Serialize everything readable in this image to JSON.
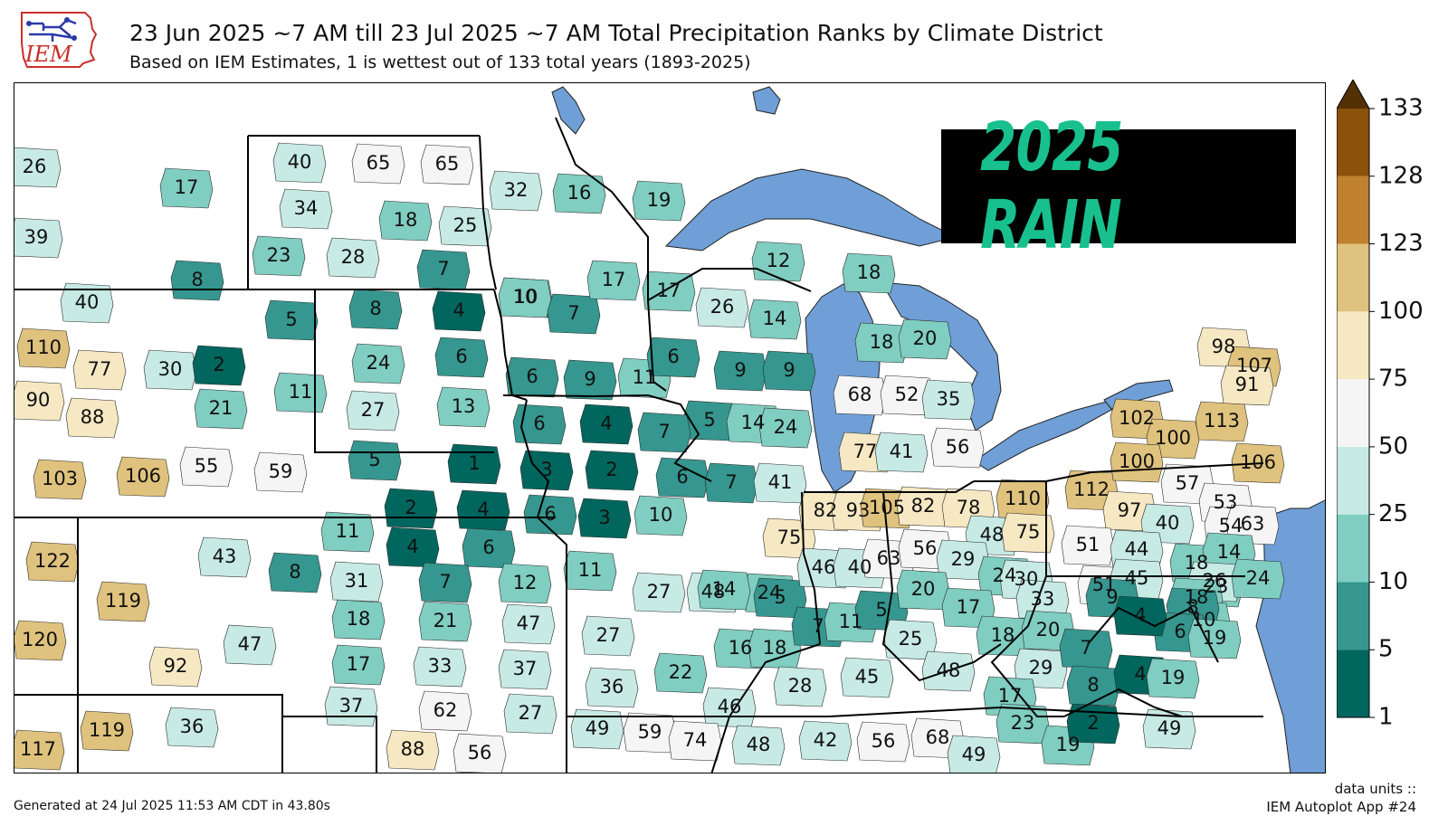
{
  "header": {
    "title": "23 Jun 2025 ~7 AM till 23 Jul 2025 ~7 AM Total Precipitation Ranks by Climate District",
    "subtitle": "Based on IEM Estimates, 1 is wettest out of 133 total years (1893-2025)"
  },
  "logo": {
    "text": "IEM",
    "color": "#c8302c"
  },
  "banner": {
    "text": "2025 RAIN",
    "text_color": "#18c08e",
    "bg_color": "#000000"
  },
  "colorbar": {
    "ticks": [
      "1",
      "5",
      "10",
      "25",
      "50",
      "75",
      "100",
      "123",
      "128",
      "133"
    ],
    "bins": [
      {
        "from": 1,
        "to": 5,
        "color": "#01665e"
      },
      {
        "from": 5,
        "to": 10,
        "color": "#35978f"
      },
      {
        "from": 10,
        "to": 25,
        "color": "#80cdc1"
      },
      {
        "from": 25,
        "to": 50,
        "color": "#c7eae5"
      },
      {
        "from": 50,
        "to": 75,
        "color": "#f5f5f5"
      },
      {
        "from": 75,
        "to": 100,
        "color": "#f6e8c3"
      },
      {
        "from": 100,
        "to": 123,
        "color": "#dfc27d"
      },
      {
        "from": 123,
        "to": 128,
        "color": "#bf812d"
      },
      {
        "from": 128,
        "to": 133,
        "color": "#8c510a"
      },
      {
        "from": 133,
        "to": 999,
        "color": "#543005"
      }
    ]
  },
  "map": {
    "water_color": "#6f9fd6",
    "district_ranks": [
      26,
      17,
      39,
      40,
      8,
      40,
      65,
      65,
      34,
      18,
      25,
      23,
      28,
      7,
      5,
      8,
      4,
      10,
      11,
      24,
      6,
      27,
      13,
      32,
      16,
      19,
      10,
      7,
      17,
      6,
      9,
      11,
      17,
      26,
      12,
      18,
      14,
      6,
      9,
      9,
      5,
      14,
      24,
      18,
      20,
      68,
      52,
      35,
      77,
      41,
      56,
      110,
      77,
      30,
      2,
      90,
      88,
      21,
      103,
      106,
      55,
      59,
      5,
      1,
      2,
      4,
      4,
      6,
      11,
      6,
      4,
      7,
      3,
      2,
      6,
      6,
      3,
      7,
      10,
      122,
      119,
      43,
      8,
      120,
      47,
      92,
      117,
      119,
      36,
      31,
      7,
      12,
      18,
      21,
      47,
      17,
      33,
      37,
      37,
      62,
      27,
      88,
      56,
      11,
      27,
      48,
      24,
      14,
      5,
      16,
      18,
      27,
      36,
      22,
      46,
      41,
      75,
      82,
      93,
      105,
      46,
      40,
      63,
      7,
      11,
      5,
      82,
      78,
      110,
      48,
      75,
      56,
      29,
      20,
      24,
      30,
      17,
      33,
      18,
      20,
      29,
      17,
      25,
      45,
      48,
      28,
      49,
      59,
      74,
      48,
      42,
      56,
      68,
      49,
      23,
      19,
      2,
      49,
      112,
      97,
      57,
      53,
      40,
      54,
      63,
      51,
      44,
      18,
      14,
      51,
      45,
      9,
      23,
      26,
      24,
      18,
      10,
      8,
      6,
      19,
      4,
      7,
      8,
      4,
      19,
      98,
      107,
      91,
      102,
      113,
      100,
      100,
      106
    ]
  },
  "footer": {
    "generated": "Generated at 24 Jul 2025 11:53 AM CDT in 43.80s",
    "units": "data units ::",
    "app": "IEM Autoplot App #24"
  }
}
